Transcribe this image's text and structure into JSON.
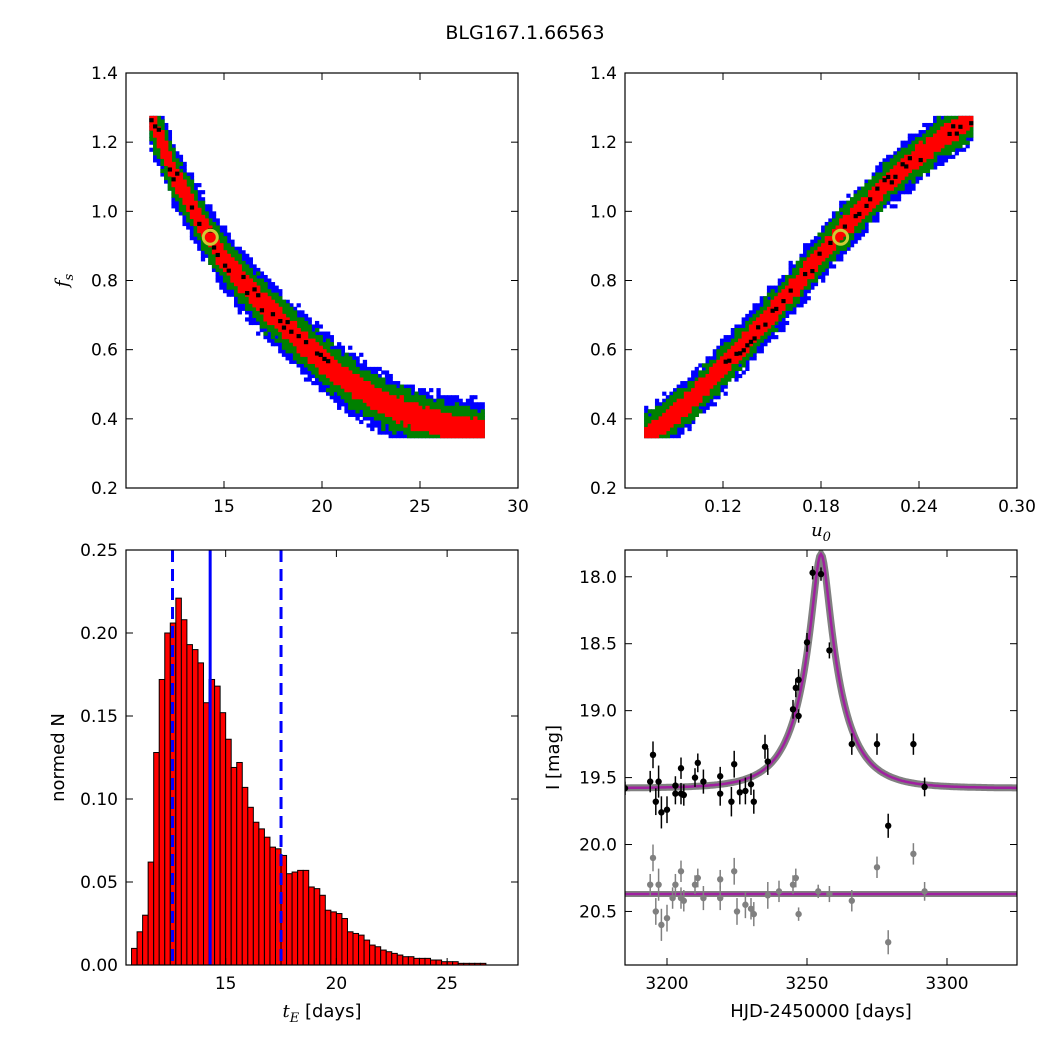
{
  "figure_title": "BLG167.1.66563",
  "chart_data": [
    {
      "id": "fs-vs-tE",
      "type": "heatmap",
      "xlim": [
        10,
        30
      ],
      "ylim": [
        0.2,
        1.4
      ],
      "x_ticks": [
        "15",
        "20",
        "25",
        "30"
      ],
      "y_ticks": [
        "0.2",
        "0.4",
        "0.6",
        "0.8",
        "1.0",
        "1.2",
        "1.4"
      ],
      "xlabel": "",
      "ylabel": "f_s",
      "confidence_colors": {
        "1sigma": "#ff0000",
        "2sigma": "#008000",
        "3sigma": "#0000ff",
        "density": "#000000"
      },
      "ridge": [
        [
          11.3,
          1.27
        ],
        [
          12.5,
          1.1
        ],
        [
          13.5,
          1.0
        ],
        [
          15,
          0.86
        ],
        [
          17,
          0.73
        ],
        [
          19,
          0.62
        ],
        [
          21,
          0.52
        ],
        [
          23,
          0.45
        ],
        [
          25,
          0.4
        ],
        [
          27,
          0.37
        ],
        [
          28.2,
          0.36
        ]
      ],
      "best_fit": {
        "x": 14.3,
        "y": 0.925,
        "marker_color": "#cccc33"
      }
    },
    {
      "id": "fs-vs-u0",
      "type": "heatmap",
      "xlim": [
        0.06,
        0.3
      ],
      "ylim": [
        0.2,
        1.4
      ],
      "x_ticks": [
        "0.12",
        "0.18",
        "0.24",
        "0.30"
      ],
      "y_ticks": [
        "0.2",
        "0.4",
        "0.6",
        "0.8",
        "1.0",
        "1.2",
        "1.4"
      ],
      "xlabel": "u_0",
      "ylabel": "",
      "confidence_colors": {
        "1sigma": "#ff0000",
        "2sigma": "#008000",
        "3sigma": "#0000ff",
        "density": "#000000"
      },
      "ridge": [
        [
          0.073,
          0.35
        ],
        [
          0.1,
          0.45
        ],
        [
          0.13,
          0.6
        ],
        [
          0.16,
          0.76
        ],
        [
          0.19,
          0.93
        ],
        [
          0.22,
          1.08
        ],
        [
          0.25,
          1.2
        ],
        [
          0.272,
          1.27
        ]
      ],
      "best_fit": {
        "x": 0.192,
        "y": 0.925,
        "marker_color": "#cccc33"
      }
    },
    {
      "id": "tE-histogram",
      "type": "bar",
      "xlim": [
        10.5,
        28.2
      ],
      "ylim": [
        0,
        0.25
      ],
      "x_ticks": [
        "15",
        "20",
        "25"
      ],
      "y_ticks": [
        "0.00",
        "0.05",
        "0.10",
        "0.15",
        "0.20",
        "0.25"
      ],
      "xlabel": "t_E [days]",
      "ylabel": "normed N",
      "bar_color": "#ff0000",
      "bins_start": 10.5,
      "bin_width": 0.25,
      "values": [
        0.0,
        0.01,
        0.02,
        0.03,
        0.062,
        0.128,
        0.172,
        0.2,
        0.206,
        0.221,
        0.208,
        0.193,
        0.19,
        0.182,
        0.158,
        0.172,
        0.168,
        0.152,
        0.136,
        0.119,
        0.122,
        0.107,
        0.095,
        0.086,
        0.082,
        0.077,
        0.071,
        0.07,
        0.066,
        0.055,
        0.056,
        0.057,
        0.057,
        0.047,
        0.046,
        0.042,
        0.033,
        0.032,
        0.031,
        0.028,
        0.02,
        0.019,
        0.018,
        0.015,
        0.012,
        0.011,
        0.009,
        0.008,
        0.007,
        0.006,
        0.005,
        0.005,
        0.004,
        0.004,
        0.004,
        0.003,
        0.003,
        0.002,
        0.002,
        0.002,
        0.001,
        0.001,
        0.001,
        0.001,
        0.001,
        0.0,
        0.0,
        0.0,
        0.0,
        0.0,
        0.0
      ],
      "median_line": {
        "x": 14.3,
        "color": "#0000ff"
      },
      "interval_lines": [
        {
          "x": 12.6,
          "color": "#0000ff"
        },
        {
          "x": 17.5,
          "color": "#0000ff"
        }
      ]
    },
    {
      "id": "light-curve",
      "type": "scatter",
      "xlim": [
        3185,
        3325
      ],
      "ylim": [
        20.9,
        17.8
      ],
      "x_ticks": [
        "3200",
        "3250",
        "3300"
      ],
      "y_ticks": [
        "18.0",
        "18.5",
        "19.0",
        "19.5",
        "20.0",
        "20.5"
      ],
      "xlabel": "HJD-2450000 [days]",
      "ylabel": "I [mag]",
      "model": {
        "t0": 3255,
        "u0": 0.19,
        "tE": 14.3,
        "fs": 0.925,
        "base_mag": 19.58,
        "color": "#a020a0",
        "band_color": "#808080"
      },
      "flat_model": {
        "mag": 20.37,
        "color": "#a020a0"
      },
      "series": [
        {
          "name": "",
          "color": "#000000",
          "points": [
            [
              3185,
              19.58,
              0.05
            ],
            [
              3194,
              19.53,
              0.08
            ],
            [
              3195,
              19.33,
              0.1
            ],
            [
              3196,
              19.68,
              0.1
            ],
            [
              3197,
              19.53,
              0.12
            ],
            [
              3198,
              19.76,
              0.12
            ],
            [
              3200,
              19.74,
              0.1
            ],
            [
              3203,
              19.56,
              0.07
            ],
            [
              3203,
              19.62,
              0.08
            ],
            [
              3205,
              19.43,
              0.08
            ],
            [
              3205,
              19.62,
              0.08
            ],
            [
              3206,
              19.63,
              0.08
            ],
            [
              3210,
              19.5,
              0.07
            ],
            [
              3211,
              19.39,
              0.07
            ],
            [
              3213,
              19.53,
              0.09
            ],
            [
              3219,
              19.49,
              0.07
            ],
            [
              3219,
              19.62,
              0.09
            ],
            [
              3223,
              19.68,
              0.11
            ],
            [
              3224,
              19.4,
              0.1
            ],
            [
              3226,
              19.61,
              0.09
            ],
            [
              3228,
              19.6,
              0.1
            ],
            [
              3230,
              19.55,
              0.08
            ],
            [
              3231,
              19.68,
              0.09
            ],
            [
              3235,
              19.27,
              0.09
            ],
            [
              3236,
              19.38,
              0.1
            ],
            [
              3245,
              18.99,
              0.07
            ],
            [
              3246,
              18.83,
              0.07
            ],
            [
              3247,
              19.04,
              0.05
            ],
            [
              3247,
              18.77,
              0.08
            ],
            [
              3250,
              18.49,
              0.07
            ],
            [
              3252,
              17.97,
              0.05
            ],
            [
              3255,
              17.98,
              0.05
            ],
            [
              3258,
              18.55,
              0.06
            ],
            [
              3266,
              19.25,
              0.08
            ],
            [
              3275,
              19.25,
              0.08
            ],
            [
              3279,
              19.86,
              0.09
            ],
            [
              3288,
              19.25,
              0.08
            ],
            [
              3292,
              19.57,
              0.07
            ]
          ]
        },
        {
          "name": "",
          "color": "#808080",
          "points": [
            [
              3194,
              20.3,
              0.08
            ],
            [
              3195,
              20.1,
              0.1
            ],
            [
              3196,
              20.5,
              0.1
            ],
            [
              3197,
              20.3,
              0.12
            ],
            [
              3198,
              20.6,
              0.12
            ],
            [
              3200,
              20.55,
              0.1
            ],
            [
              3202,
              20.4,
              0.08
            ],
            [
              3203,
              20.3,
              0.08
            ],
            [
              3205,
              20.4,
              0.08
            ],
            [
              3205,
              20.2,
              0.08
            ],
            [
              3206,
              20.42,
              0.08
            ],
            [
              3210,
              20.3,
              0.07
            ],
            [
              3211,
              20.25,
              0.07
            ],
            [
              3213,
              20.4,
              0.09
            ],
            [
              3219,
              20.26,
              0.07
            ],
            [
              3219,
              20.4,
              0.09
            ],
            [
              3224,
              20.2,
              0.1
            ],
            [
              3225,
              20.5,
              0.1
            ],
            [
              3228,
              20.45,
              0.1
            ],
            [
              3230,
              20.48,
              0.08
            ],
            [
              3231,
              20.52,
              0.09
            ],
            [
              3236,
              20.38,
              0.1
            ],
            [
              3240,
              20.35,
              0.08
            ],
            [
              3245,
              20.3,
              0.07
            ],
            [
              3246,
              20.25,
              0.07
            ],
            [
              3247,
              20.52,
              0.05
            ],
            [
              3254,
              20.35,
              0.05
            ],
            [
              3258,
              20.37,
              0.06
            ],
            [
              3266,
              20.42,
              0.08
            ],
            [
              3275,
              20.17,
              0.08
            ],
            [
              3279,
              20.73,
              0.09
            ],
            [
              3288,
              20.07,
              0.08
            ],
            [
              3292,
              20.35,
              0.07
            ]
          ]
        }
      ]
    }
  ]
}
